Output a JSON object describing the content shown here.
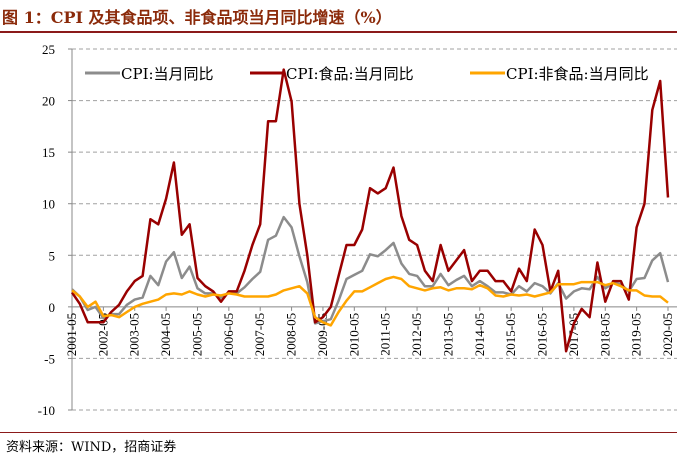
{
  "title": "图 1：CPI 及其食品项、非食品项当月同比增速（%）",
  "source": "资料来源：WIND，招商证券",
  "chart_data": {
    "type": "line",
    "title": "图 1：CPI 及其食品项、非食品项当月同比增速（%）",
    "xlabel": "",
    "ylabel": "",
    "ylim": [
      -10,
      25
    ],
    "yticks": [
      25,
      20,
      15,
      10,
      5,
      0,
      -5,
      -10
    ],
    "grid": true,
    "legend": "top",
    "xticks": [
      "2001-05",
      "2002-05",
      "2003-05",
      "2004-05",
      "2005-05",
      "2006-05",
      "2007-05",
      "2008-05",
      "2009-05",
      "2010-05",
      "2011-05",
      "2012-05",
      "2013-05",
      "2014-05",
      "2015-05",
      "2016-05",
      "2017-05",
      "2018-05",
      "2019-05",
      "2020-05"
    ],
    "x": [
      "2001-05",
      "2001-08",
      "2001-11",
      "2002-02",
      "2002-05",
      "2002-08",
      "2002-11",
      "2003-02",
      "2003-05",
      "2003-08",
      "2003-11",
      "2004-02",
      "2004-05",
      "2004-08",
      "2004-11",
      "2005-02",
      "2005-05",
      "2005-08",
      "2005-11",
      "2006-02",
      "2006-05",
      "2006-08",
      "2006-11",
      "2007-02",
      "2007-05",
      "2007-08",
      "2007-11",
      "2008-02",
      "2008-05",
      "2008-08",
      "2008-11",
      "2009-02",
      "2009-05",
      "2009-08",
      "2009-11",
      "2010-02",
      "2010-05",
      "2010-08",
      "2010-11",
      "2011-02",
      "2011-05",
      "2011-08",
      "2011-11",
      "2012-02",
      "2012-05",
      "2012-08",
      "2012-11",
      "2013-02",
      "2013-05",
      "2013-08",
      "2013-11",
      "2014-02",
      "2014-05",
      "2014-08",
      "2014-11",
      "2015-02",
      "2015-05",
      "2015-08",
      "2015-11",
      "2016-02",
      "2016-05",
      "2016-08",
      "2016-11",
      "2017-02",
      "2017-05",
      "2017-08",
      "2017-11",
      "2018-02",
      "2018-05",
      "2018-08",
      "2018-11",
      "2019-02",
      "2019-05",
      "2019-08",
      "2019-11",
      "2020-02",
      "2020-05"
    ],
    "series": [
      {
        "name": "CPI:当月同比",
        "color": "#8c8c8c",
        "values": [
          1.7,
          1.0,
          -0.3,
          0.0,
          -1.1,
          -0.7,
          -0.7,
          0.2,
          0.7,
          0.9,
          3.0,
          2.1,
          4.4,
          5.3,
          2.8,
          3.9,
          1.8,
          1.3,
          1.3,
          0.9,
          1.4,
          1.3,
          1.9,
          2.7,
          3.4,
          6.5,
          6.9,
          8.7,
          7.7,
          4.9,
          2.4,
          -1.6,
          -1.4,
          -1.2,
          0.6,
          2.7,
          3.1,
          3.5,
          5.1,
          4.9,
          5.5,
          6.2,
          4.2,
          3.2,
          3.0,
          2.0,
          2.0,
          3.2,
          2.1,
          2.6,
          3.0,
          2.0,
          2.5,
          2.0,
          1.4,
          1.4,
          1.2,
          2.0,
          1.5,
          2.3,
          2.0,
          1.3,
          2.3,
          0.8,
          1.5,
          1.8,
          1.7,
          2.9,
          1.8,
          2.3,
          2.2,
          1.5,
          2.7,
          2.8,
          4.5,
          5.2,
          2.4
        ]
      },
      {
        "name": "CPI:食品:当月同比",
        "color": "#990000",
        "values": [
          1.4,
          0.3,
          -1.5,
          -1.5,
          -1.5,
          -0.5,
          0.2,
          1.5,
          2.5,
          3.0,
          8.5,
          8.0,
          10.5,
          14.0,
          7.0,
          8.0,
          2.8,
          2.0,
          1.5,
          0.5,
          1.5,
          1.5,
          3.5,
          6.0,
          8.0,
          18.0,
          18.0,
          23.0,
          19.9,
          10.0,
          5.0,
          -1.5,
          -1.0,
          0.0,
          3.0,
          6.0,
          6.0,
          7.5,
          11.5,
          11.0,
          11.5,
          13.5,
          8.8,
          6.5,
          6.0,
          3.5,
          2.5,
          6.0,
          3.5,
          4.5,
          5.5,
          2.5,
          3.5,
          3.5,
          2.5,
          2.5,
          1.5,
          3.7,
          2.5,
          7.5,
          6.0,
          1.5,
          3.5,
          -4.3,
          -1.6,
          -0.2,
          -1.0,
          4.3,
          0.5,
          2.5,
          2.5,
          0.7,
          7.7,
          10.0,
          19.1,
          21.9,
          10.6
        ]
      },
      {
        "name": "CPI:非食品:当月同比",
        "color": "#ffa500",
        "values": [
          1.6,
          1.0,
          0.0,
          0.5,
          -0.9,
          -0.8,
          -1.0,
          -0.5,
          0.0,
          0.3,
          0.5,
          0.7,
          1.2,
          1.3,
          1.2,
          1.5,
          1.2,
          1.0,
          1.2,
          1.1,
          1.3,
          1.2,
          1.0,
          1.0,
          1.0,
          1.0,
          1.2,
          1.6,
          1.8,
          2.0,
          1.3,
          -1.0,
          -1.5,
          -1.8,
          -0.5,
          0.6,
          1.5,
          1.5,
          1.9,
          2.3,
          2.7,
          2.9,
          2.7,
          2.0,
          1.8,
          1.6,
          1.8,
          1.9,
          1.6,
          1.8,
          1.8,
          1.7,
          2.1,
          1.8,
          1.1,
          1.0,
          1.2,
          1.1,
          1.2,
          1.0,
          1.2,
          1.4,
          2.2,
          2.2,
          2.2,
          2.4,
          2.4,
          2.4,
          2.1,
          2.3,
          2.0,
          1.6,
          1.6,
          1.1,
          1.0,
          1.0,
          0.4
        ]
      }
    ]
  }
}
